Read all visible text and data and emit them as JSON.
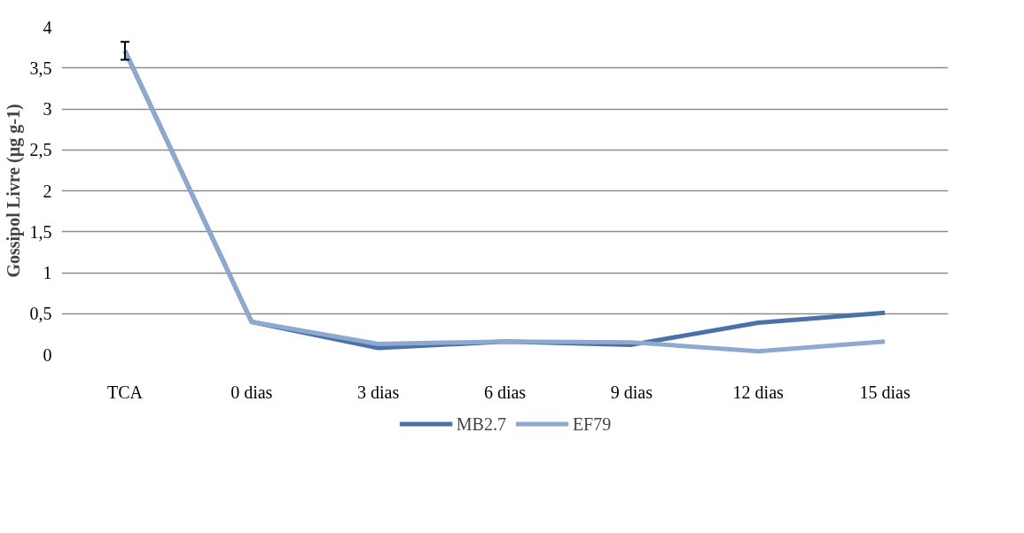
{
  "chart_data": {
    "type": "line",
    "ylabel": "Gossipol Livre (µg g-1)",
    "categories": [
      "TCA",
      "0 dias",
      "3 dias",
      "6 dias",
      "9 dias",
      "12 dias",
      "15 dias"
    ],
    "series": [
      {
        "name": "MB2.7",
        "color": "#4a72a9",
        "values": [
          3.71,
          0.4,
          0.08,
          0.16,
          0.12,
          0.39,
          0.51
        ]
      },
      {
        "name": "EF79",
        "color": "#8fa8d0",
        "values": [
          3.71,
          0.4,
          0.13,
          0.16,
          0.15,
          0.04,
          0.16
        ],
        "errors": [
          0.11,
          null,
          null,
          null,
          null,
          null,
          null
        ]
      }
    ],
    "ylim": [
      0,
      4
    ],
    "yticks": [
      {
        "value": 0,
        "label": "0"
      },
      {
        "value": 0.5,
        "label": "0,5"
      },
      {
        "value": 1,
        "label": "1"
      },
      {
        "value": 1.5,
        "label": "1,5"
      },
      {
        "value": 2,
        "label": "2"
      },
      {
        "value": 2.5,
        "label": "2,5"
      },
      {
        "value": 3,
        "label": "3"
      },
      {
        "value": 3.5,
        "label": "3,5"
      },
      {
        "value": 4,
        "label": "4"
      }
    ],
    "grid": "y",
    "legend": "bottom",
    "marker": "none",
    "line_style": "solid"
  }
}
